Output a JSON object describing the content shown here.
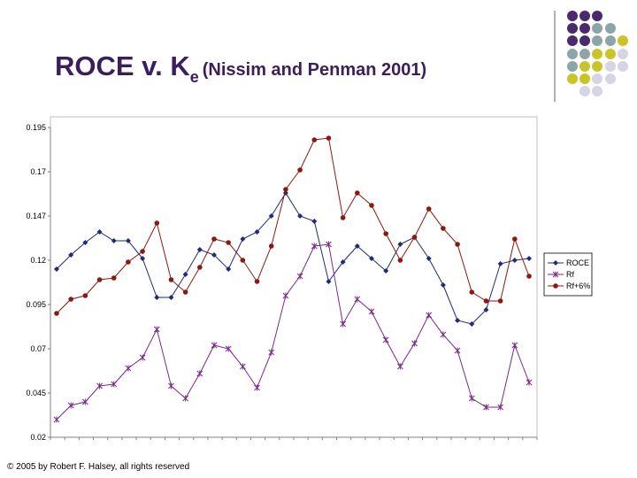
{
  "slide": {
    "title_main": "ROCE v. K",
    "title_sub": "e",
    "title_rest": "(Nissim and Penman 2001)",
    "copyright": "© 2005 by Robert F. Halsey, all rights reserved"
  },
  "decor": {
    "dot_colors": [
      [
        "#4a2a6e",
        "#4a2a6e",
        "#4a2a6e",
        null,
        null
      ],
      [
        "#4a2a6e",
        "#4a2a6e",
        "#8aa6a8",
        "#8aa6a8",
        null
      ],
      [
        "#4a2a6e",
        "#4a2a6e",
        "#8aa6a8",
        "#8aa6a8",
        "#c9c428"
      ],
      [
        "#8aa6a8",
        "#8aa6a8",
        "#c9c428",
        "#c9c428",
        "#d5d5e6"
      ],
      [
        "#8aa6a8",
        "#c9c428",
        "#c9c428",
        "#d5d5e6",
        "#d5d5e6"
      ],
      [
        "#c9c428",
        "#c9c428",
        "#d5d5e6",
        "#d5d5e6",
        null
      ],
      [
        null,
        "#d5d5e6",
        "#d5d5e6",
        null,
        null
      ]
    ]
  },
  "chart_data": {
    "type": "line",
    "title": "",
    "xlabel": "",
    "ylabel": "",
    "ylim": [
      0.02,
      0.195
    ],
    "yticks": [
      "0.195",
      "0.17",
      "0.147",
      "0.12",
      "0.095",
      "0.07",
      "0.045",
      "0.02"
    ],
    "grid": false,
    "legend_position": "right",
    "series": [
      {
        "name": "ROCE",
        "color": "#1f2a7a",
        "marker": "diamond",
        "values": [
          0.115,
          0.123,
          0.13,
          0.136,
          0.131,
          0.131,
          0.121,
          0.099,
          0.099,
          0.112,
          0.126,
          0.123,
          0.115,
          0.132,
          0.136,
          0.145,
          0.158,
          0.145,
          0.142,
          0.108,
          0.119,
          0.128,
          0.121,
          0.114,
          0.129,
          0.133,
          0.121,
          0.106,
          0.086,
          0.084,
          0.092,
          0.118,
          0.12,
          0.121
        ]
      },
      {
        "name": "Rf",
        "color": "#7a2a8a",
        "marker": "asterisk",
        "values": [
          0.03,
          0.038,
          0.04,
          0.049,
          0.05,
          0.059,
          0.065,
          0.081,
          0.049,
          0.042,
          0.056,
          0.072,
          0.07,
          0.06,
          0.048,
          0.068,
          0.1,
          0.111,
          0.128,
          0.129,
          0.084,
          0.098,
          0.091,
          0.075,
          0.06,
          0.073,
          0.089,
          0.078,
          0.069,
          0.042,
          0.037,
          0.037,
          0.072,
          0.051
        ]
      },
      {
        "name": "Rf+6%",
        "color": "#8a1a10",
        "marker": "circle",
        "values": [
          0.09,
          0.098,
          0.1,
          0.109,
          0.11,
          0.119,
          0.125,
          0.141,
          0.109,
          0.102,
          0.116,
          0.132,
          0.13,
          0.12,
          0.108,
          0.128,
          0.16,
          0.171,
          0.188,
          0.189,
          0.144,
          0.158,
          0.151,
          0.135,
          0.12,
          0.133,
          0.149,
          0.138,
          0.129,
          0.102,
          0.097,
          0.097,
          0.132,
          0.111
        ]
      }
    ]
  }
}
